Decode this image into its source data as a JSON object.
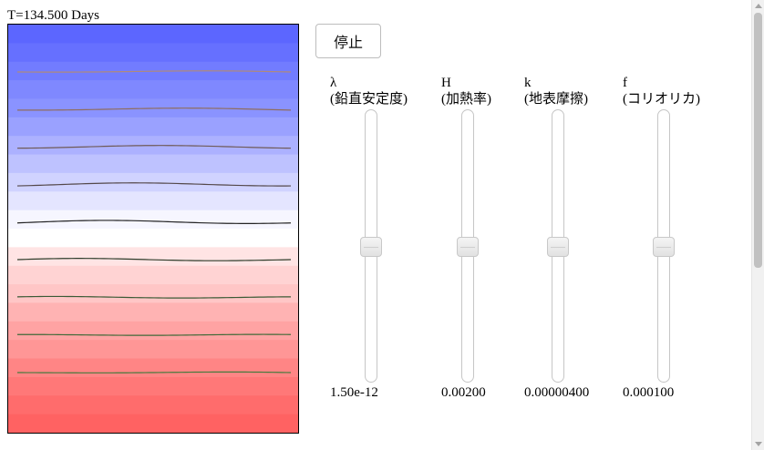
{
  "header": {
    "time_label": "T=134.500 Days"
  },
  "controls": {
    "stop_label": "停止"
  },
  "simulation": {
    "band_colors": [
      "#5c66ff",
      "#6670ff",
      "#727cff",
      "#7f88ff",
      "#8a93ff",
      "#9aa1ff",
      "#acb1ff",
      "#bec2ff",
      "#d0d3ff",
      "#e4e5ff",
      "#f6f6ff",
      "#ffffff",
      "#ffe4e4",
      "#ffd3d3",
      "#ffc6c6",
      "#ffb3b3",
      "#ffa3a3",
      "#ff9696",
      "#ff8585",
      "#ff7878",
      "#ff6c6c",
      "#ff6262"
    ],
    "contour_colors": [
      "#b08a7a",
      "#8f6d5e",
      "#6f5a57",
      "#54484a",
      "#242424",
      "#2f3d2b",
      "#3b5a35",
      "#3f6a38",
      "#467a3e"
    ]
  },
  "params": [
    {
      "symbol": "λ",
      "desc": "(鉛直安定度)",
      "value": "1.50e-12",
      "position": 0.5
    },
    {
      "symbol": "H",
      "desc": "(加熱率)",
      "value": "0.00200",
      "position": 0.5
    },
    {
      "symbol": "k",
      "desc": "(地表摩擦)",
      "value": "0.00000400",
      "position": 0.5
    },
    {
      "symbol": "f",
      "desc": "(コリオリカ)",
      "value": "0.000100",
      "position": 0.5
    }
  ]
}
